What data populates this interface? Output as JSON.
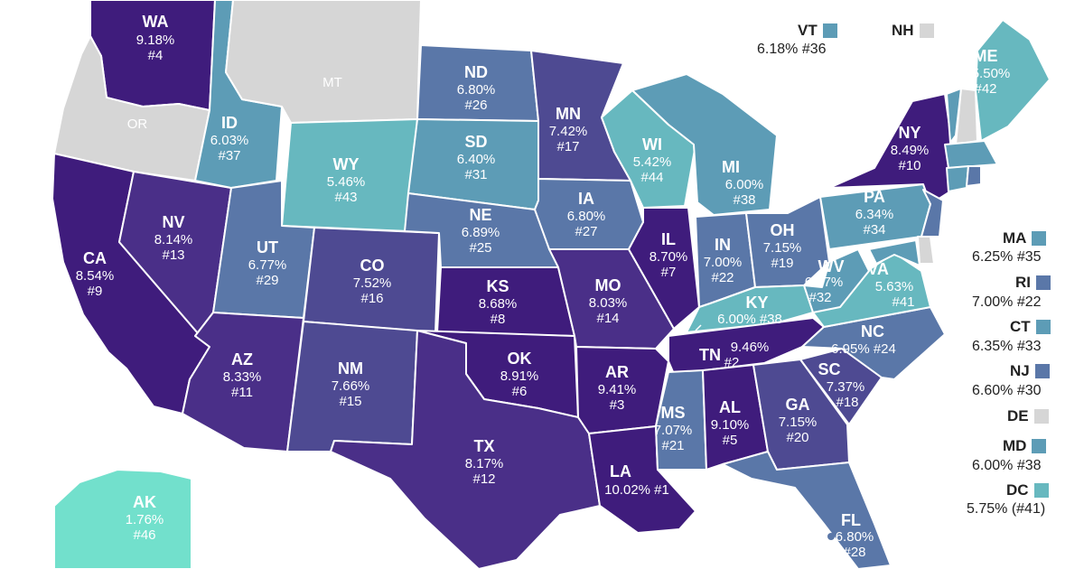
{
  "colors": {
    "c1": "#3f1c7c",
    "c2": "#4a2f88",
    "c3": "#4e4a92",
    "c4": "#5a77a8",
    "c5": "#5d9cb6",
    "c6": "#67b8bf",
    "c7": "#72e0cc",
    "nodata": "#d6d6d6",
    "label_light": "#ffffff",
    "label_dark": "#222222"
  },
  "states": {
    "WA": {
      "abbr": "WA",
      "rate": "9.18%",
      "rank": "#4"
    },
    "OR": {
      "abbr": "OR"
    },
    "CA": {
      "abbr": "CA",
      "rate": "8.54%",
      "rank": "#9"
    },
    "NV": {
      "abbr": "NV",
      "rate": "8.14%",
      "rank": "#13"
    },
    "ID": {
      "abbr": "ID",
      "rate": "6.03%",
      "rank": "#37"
    },
    "MT": {
      "abbr": "MT"
    },
    "WY": {
      "abbr": "WY",
      "rate": "5.46%",
      "rank": "#43"
    },
    "UT": {
      "abbr": "UT",
      "rate": "6.77%",
      "rank": "#29"
    },
    "AZ": {
      "abbr": "AZ",
      "rate": "8.33%",
      "rank": "#11"
    },
    "CO": {
      "abbr": "CO",
      "rate": "7.52%",
      "rank": "#16"
    },
    "NM": {
      "abbr": "NM",
      "rate": "7.66%",
      "rank": "#15"
    },
    "ND": {
      "abbr": "ND",
      "rate": "6.80%",
      "rank": "#26"
    },
    "SD": {
      "abbr": "SD",
      "rate": "6.40%",
      "rank": "#31"
    },
    "NE": {
      "abbr": "NE",
      "rate": "6.89%",
      "rank": "#25"
    },
    "KS": {
      "abbr": "KS",
      "rate": "8.68%",
      "rank": "#8"
    },
    "OK": {
      "abbr": "OK",
      "rate": "8.91%",
      "rank": "#6"
    },
    "TX": {
      "abbr": "TX",
      "rate": "8.17%",
      "rank": "#12"
    },
    "MN": {
      "abbr": "MN",
      "rate": "7.42%",
      "rank": "#17"
    },
    "IA": {
      "abbr": "IA",
      "rate": "6.80%",
      "rank": "#27"
    },
    "MO": {
      "abbr": "MO",
      "rate": "8.03%",
      "rank": "#14"
    },
    "AR": {
      "abbr": "AR",
      "rate": "9.41%",
      "rank": "#3"
    },
    "LA": {
      "abbr": "LA",
      "line": "10.02% #1"
    },
    "WI": {
      "abbr": "WI",
      "rate": "5.42%",
      "rank": "#44"
    },
    "IL": {
      "abbr": "IL",
      "rate": "8.70%",
      "rank": "#7"
    },
    "MI": {
      "abbr": "MI",
      "rate": "6.00%",
      "rank": "#38"
    },
    "IN": {
      "abbr": "IN",
      "rate": "7.00%",
      "rank": "#22"
    },
    "OH": {
      "abbr": "OH",
      "rate": "7.15%",
      "rank": "#19"
    },
    "KY": {
      "abbr": "KY",
      "line": "6.00% #38"
    },
    "TN": {
      "abbr": "TN",
      "rate": "9.46%",
      "rank": "#2"
    },
    "MS": {
      "abbr": "MS",
      "rate": "7.07%",
      "rank": "#21"
    },
    "AL": {
      "abbr": "AL",
      "rate": "9.10%",
      "rank": "#5"
    },
    "GA": {
      "abbr": "GA",
      "rate": "7.15%",
      "rank": "#20"
    },
    "FL": {
      "abbr": "FL",
      "rate": "6.80%",
      "rank": "#28"
    },
    "SC": {
      "abbr": "SC",
      "rate": "7.37%",
      "rank": "#18"
    },
    "NC": {
      "abbr": "NC",
      "line": "6.95% #24"
    },
    "VA": {
      "abbr": "VA",
      "rate": "5.63%",
      "rank": "#41"
    },
    "WV": {
      "abbr": "WV",
      "rate": "6.37%",
      "rank": "#32"
    },
    "PA": {
      "abbr": "PA",
      "rate": "6.34%",
      "rank": "#34"
    },
    "NY": {
      "abbr": "NY",
      "rate": "8.49%",
      "rank": "#10"
    },
    "ME": {
      "abbr": "ME",
      "rate": "5.50%",
      "rank": "#42"
    },
    "AK": {
      "abbr": "AK",
      "rate": "1.76%",
      "rank": "#46"
    }
  },
  "legend": {
    "VT": {
      "abbr": "VT",
      "value": "6.18% #36"
    },
    "NH": {
      "abbr": "NH"
    },
    "MA": {
      "abbr": "MA",
      "value": "6.25% #35"
    },
    "RI": {
      "abbr": "RI",
      "value": "7.00% #22"
    },
    "CT": {
      "abbr": "CT",
      "value": "6.35% #33"
    },
    "NJ": {
      "abbr": "NJ",
      "value": "6.60% #30"
    },
    "DE": {
      "abbr": "DE"
    },
    "MD": {
      "abbr": "MD",
      "value": "6.00% #38"
    },
    "DC": {
      "abbr": "DC",
      "value": "5.75% (#41)"
    }
  }
}
